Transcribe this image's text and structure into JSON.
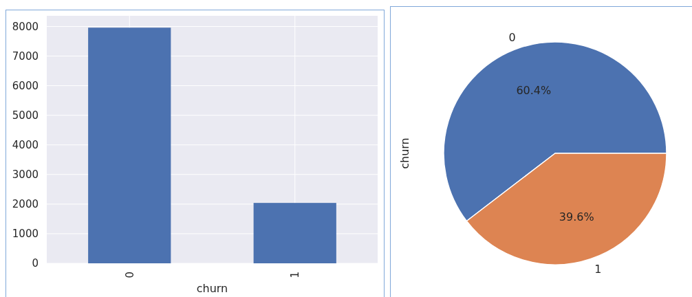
{
  "chart_data": [
    {
      "type": "bar",
      "categories": [
        "0",
        "1"
      ],
      "values": [
        7960,
        2040
      ],
      "color": "#4c72b0",
      "xlabel": "churn",
      "ylim": [
        0,
        8360
      ],
      "yticks": [
        0,
        1000,
        2000,
        3000,
        4000,
        5000,
        6000,
        7000,
        8000
      ],
      "grid": true
    },
    {
      "type": "pie",
      "categories": [
        "0",
        "1"
      ],
      "values": [
        60.4,
        39.6
      ],
      "colors": [
        "#4c72b0",
        "#dd8452"
      ],
      "value_labels": [
        "60.4%",
        "39.6%"
      ],
      "ylabel": "churn"
    }
  ]
}
